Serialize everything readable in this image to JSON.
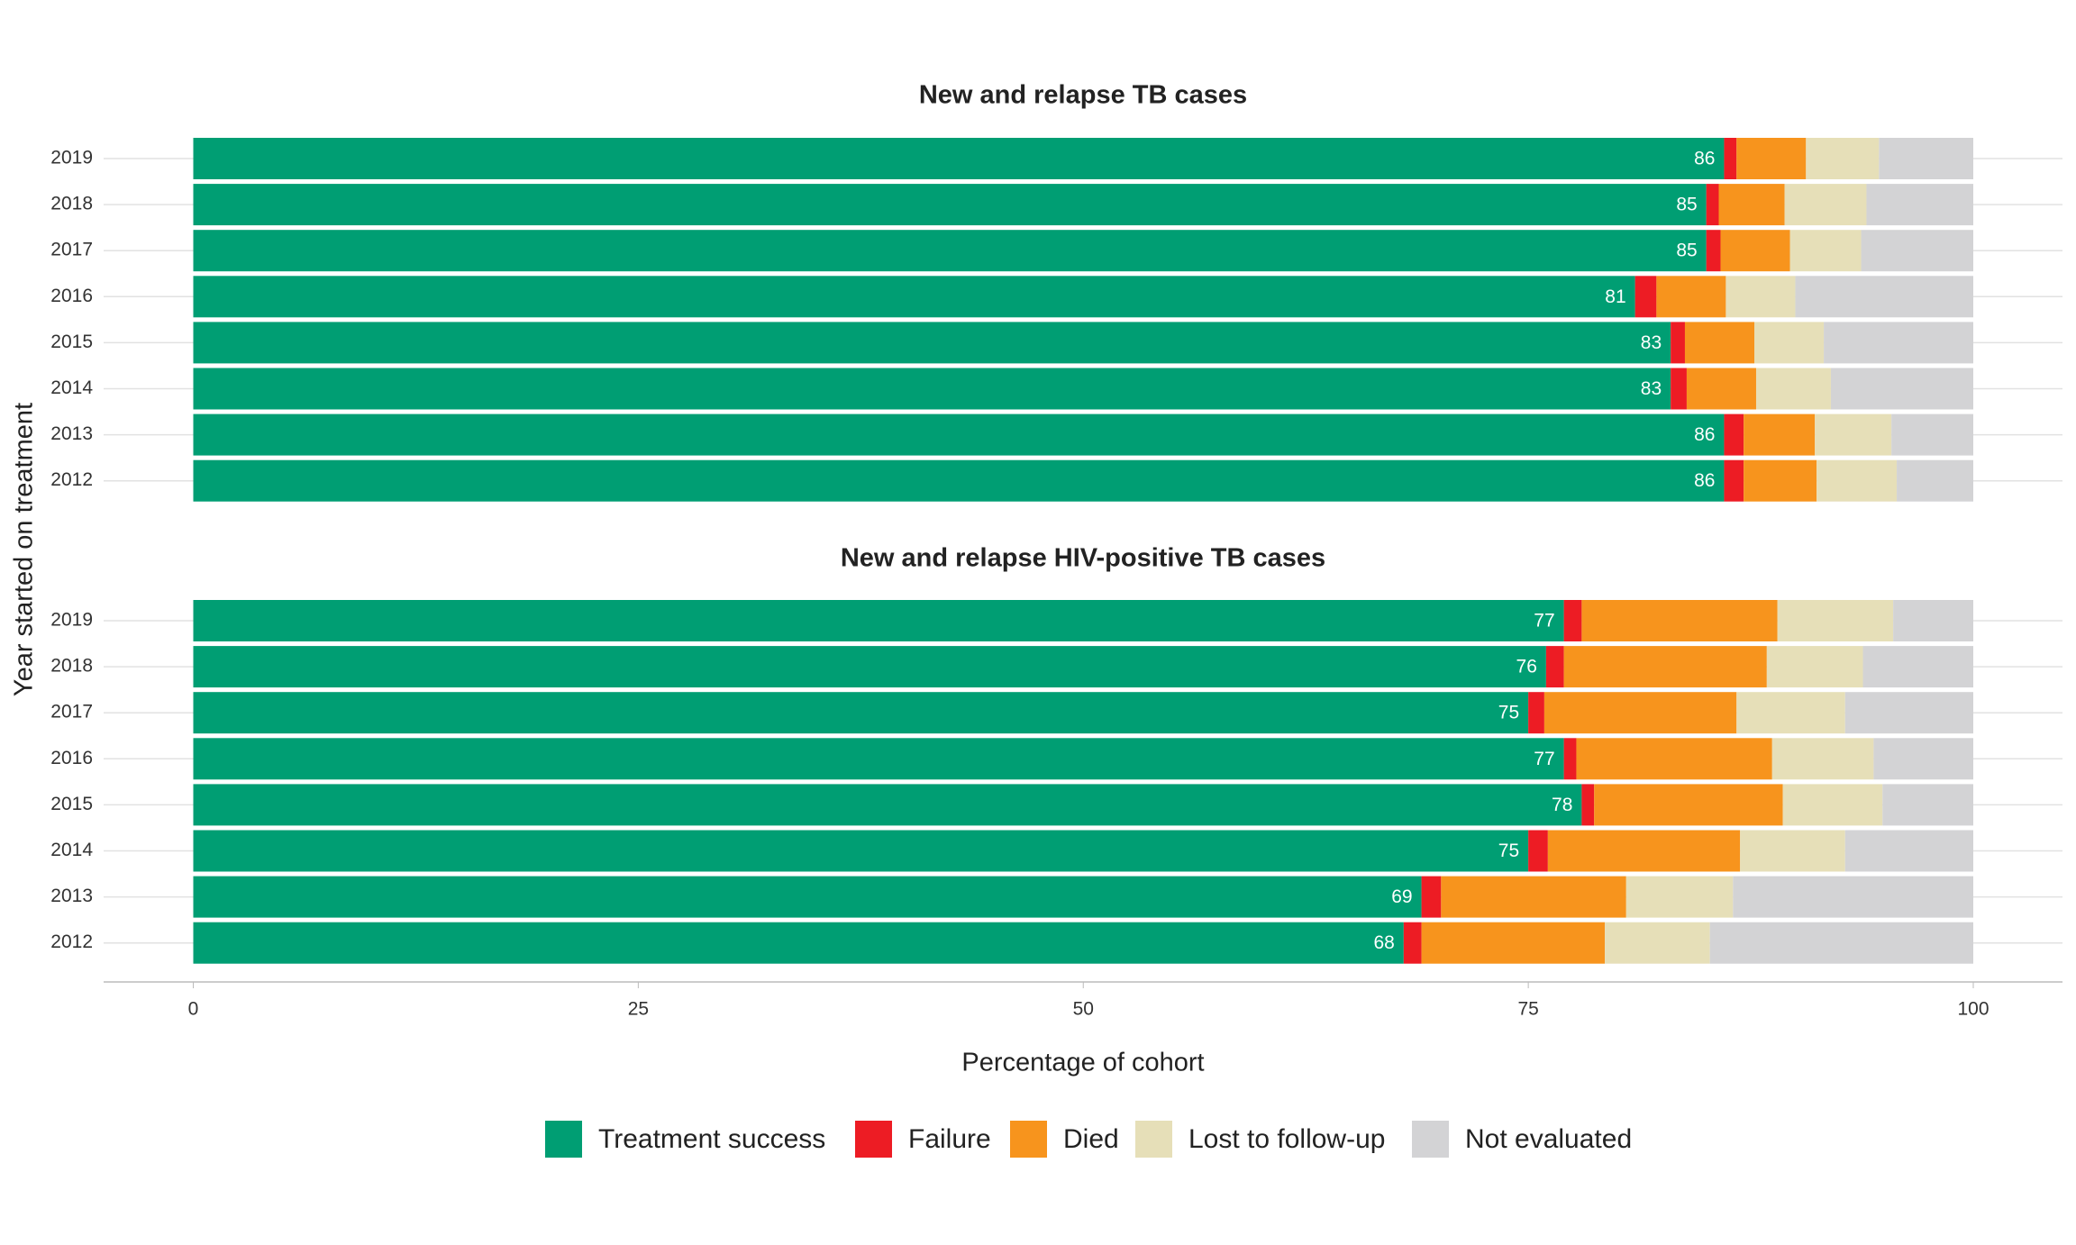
{
  "chart_data": [
    {
      "type": "bar",
      "orientation": "horizontal",
      "stacked": true,
      "title": "New and relapse TB cases",
      "ylabel": "Year started on treatment",
      "categories": [
        "2019",
        "2018",
        "2017",
        "2016",
        "2015",
        "2014",
        "2013",
        "2012"
      ],
      "xlim": [
        0,
        100
      ],
      "grid": true,
      "series": [
        {
          "name": "Treatment success",
          "color": "#009e73",
          "values": [
            86,
            85,
            85,
            81,
            83,
            83,
            86,
            86
          ]
        },
        {
          "name": "Failure",
          "color": "#ed1c24",
          "values": [
            0.7,
            0.7,
            0.8,
            1.2,
            0.8,
            0.9,
            1.1,
            1.1
          ]
        },
        {
          "name": "Died",
          "color": "#f7941d",
          "values": [
            3.9,
            3.7,
            3.9,
            3.9,
            3.9,
            3.9,
            4.0,
            4.1
          ]
        },
        {
          "name": "Lost to follow-up",
          "color": "#e6dfb8",
          "values": [
            4.1,
            4.6,
            4.0,
            3.9,
            3.9,
            4.2,
            4.3,
            4.5
          ]
        },
        {
          "name": "Not evaluated",
          "color": "#d3d3d5",
          "values": [
            5.3,
            6.0,
            6.3,
            10.0,
            8.4,
            8.0,
            4.6,
            4.3
          ]
        }
      ]
    },
    {
      "type": "bar",
      "orientation": "horizontal",
      "stacked": true,
      "title": "New and relapse HIV-positive TB cases",
      "xlabel": "Percentage of cohort",
      "categories": [
        "2019",
        "2018",
        "2017",
        "2016",
        "2015",
        "2014",
        "2013",
        "2012"
      ],
      "xlim": [
        0,
        100
      ],
      "xticks": [
        0,
        25,
        50,
        75,
        100
      ],
      "grid": true,
      "series": [
        {
          "name": "Treatment success",
          "color": "#009e73",
          "values": [
            77,
            76,
            75,
            77,
            78,
            75,
            69,
            68
          ]
        },
        {
          "name": "Failure",
          "color": "#ed1c24",
          "values": [
            1.0,
            1.0,
            0.9,
            0.7,
            0.7,
            1.1,
            1.1,
            1.0
          ]
        },
        {
          "name": "Died",
          "color": "#f7941d",
          "values": [
            11.0,
            11.4,
            10.8,
            11.0,
            10.6,
            10.8,
            10.4,
            10.3
          ]
        },
        {
          "name": "Lost to follow-up",
          "color": "#e6dfb8",
          "values": [
            6.5,
            5.4,
            6.1,
            5.7,
            5.6,
            5.9,
            6.0,
            5.9
          ]
        },
        {
          "name": "Not evaluated",
          "color": "#d3d3d5",
          "values": [
            4.5,
            6.2,
            7.2,
            5.6,
            5.1,
            7.2,
            13.5,
            14.8
          ]
        }
      ]
    }
  ]
}
